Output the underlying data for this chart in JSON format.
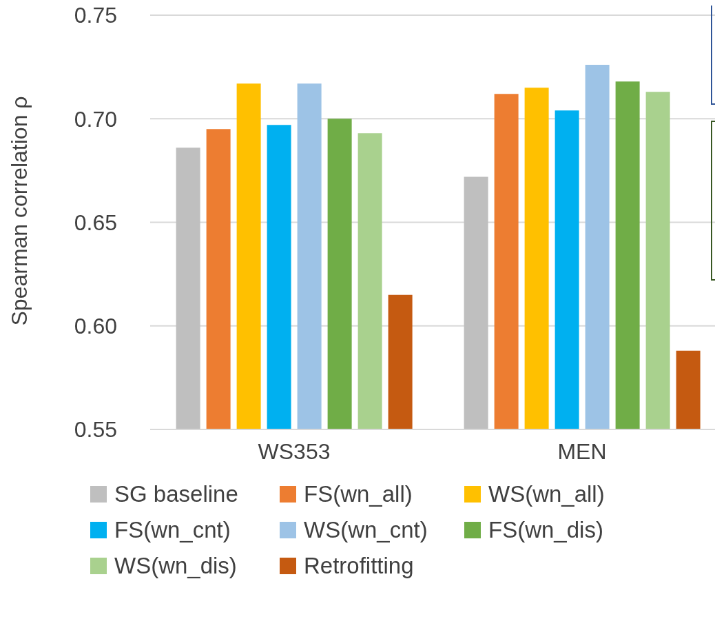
{
  "chart_data": {
    "type": "bar",
    "ylabel": "Spearman correlation ρ",
    "categories": [
      "WS353",
      "MEN"
    ],
    "series": [
      {
        "name": "SG baseline",
        "color": "#bfbfbf",
        "values": [
          0.686,
          0.672
        ]
      },
      {
        "name": "FS(wn_all)",
        "color": "#ed7d31",
        "values": [
          0.695,
          0.712
        ]
      },
      {
        "name": "WS(wn_all)",
        "color": "#ffc000",
        "values": [
          0.717,
          0.715
        ]
      },
      {
        "name": "FS(wn_cnt)",
        "color": "#00b0f0",
        "values": [
          0.697,
          0.704
        ]
      },
      {
        "name": "WS(wn_cnt)",
        "color": "#9dc3e6",
        "values": [
          0.717,
          0.726
        ]
      },
      {
        "name": "FS(wn_dis)",
        "color": "#70ad47",
        "values": [
          0.7,
          0.718
        ]
      },
      {
        "name": "WS(wn_dis)",
        "color": "#a9d18e",
        "values": [
          0.693,
          0.713
        ]
      },
      {
        "name": "Retrofitting",
        "color": "#c55a11",
        "values": [
          0.615,
          0.588
        ]
      }
    ],
    "ylim": [
      0.55,
      0.75
    ],
    "yticks": [
      {
        "value": 0.55,
        "label": "0.55"
      },
      {
        "value": 0.6,
        "label": "0.60"
      },
      {
        "value": 0.65,
        "label": "0.65"
      },
      {
        "value": 0.7,
        "label": "0.70"
      },
      {
        "value": 0.75,
        "label": "0.75"
      }
    ],
    "grid": "y",
    "legend": "bottom"
  }
}
